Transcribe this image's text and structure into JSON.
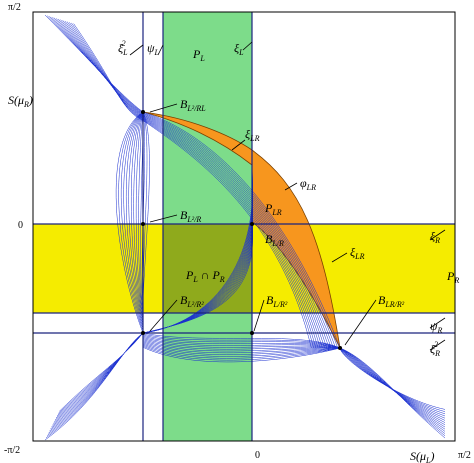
{
  "axes": {
    "y_label": {
      "parts": [
        [
          "S(μ",
          "base"
        ],
        [
          "R",
          "sub"
        ],
        [
          ")",
          "base"
        ]
      ]
    },
    "x_label": {
      "parts": [
        [
          "S(μ",
          "base"
        ],
        [
          "L",
          "sub"
        ],
        [
          ")",
          "base"
        ]
      ]
    },
    "y_ticks": [
      "π/2",
      "0",
      "-π/2"
    ],
    "x_ticks": [
      "0",
      "π/2"
    ]
  },
  "labels": [
    {
      "parts": [
        [
          "P",
          "base"
        ],
        [
          "L",
          "sub"
        ]
      ]
    },
    {
      "parts": [
        [
          "ξ",
          "base"
        ],
        [
          "L",
          "sub"
        ],
        [
          "2",
          "sup"
        ]
      ]
    },
    {
      "parts": [
        [
          "ψ",
          "base"
        ],
        [
          "L",
          "sub"
        ]
      ]
    },
    {
      "parts": [
        [
          "ξ",
          "base"
        ],
        [
          "L",
          "sub"
        ]
      ]
    },
    {
      "parts": [
        [
          "B",
          "base"
        ],
        [
          "L²/RL",
          "sub"
        ]
      ]
    },
    {
      "parts": [
        [
          "ξ",
          "base"
        ],
        [
          "LR",
          "sub"
        ]
      ]
    },
    {
      "parts": [
        [
          "φ",
          "base"
        ],
        [
          "LR",
          "sub"
        ]
      ]
    },
    {
      "parts": [
        [
          "P",
          "base"
        ],
        [
          "LR",
          "sub"
        ]
      ]
    },
    {
      "parts": [
        [
          "B",
          "base"
        ],
        [
          "L²/R",
          "sub"
        ]
      ]
    },
    {
      "parts": [
        [
          "B",
          "base"
        ],
        [
          "L/R",
          "sub"
        ]
      ]
    },
    {
      "parts": [
        [
          "ξ",
          "base"
        ],
        [
          "LR",
          "sub"
        ]
      ]
    },
    {
      "parts": [
        [
          "ξ",
          "base"
        ],
        [
          "R",
          "sub"
        ]
      ]
    },
    {
      "parts": [
        [
          "P",
          "base"
        ],
        [
          "R",
          "sub"
        ]
      ]
    },
    {
      "parts": [
        [
          "P",
          "base"
        ],
        [
          "L",
          "sub"
        ],
        [
          " ∩ P",
          "base"
        ],
        [
          "R",
          "sub"
        ]
      ]
    },
    {
      "parts": [
        [
          "B",
          "base"
        ],
        [
          "L²/R²",
          "sub"
        ]
      ]
    },
    {
      "parts": [
        [
          "B",
          "base"
        ],
        [
          "L/R²",
          "sub"
        ]
      ]
    },
    {
      "parts": [
        [
          "B",
          "base"
        ],
        [
          "LR/R²",
          "sub"
        ]
      ]
    },
    {
      "parts": [
        [
          "ψ",
          "base"
        ],
        [
          "R",
          "sub"
        ]
      ]
    },
    {
      "parts": [
        [
          "ξ",
          "base"
        ],
        [
          "R",
          "sub"
        ],
        [
          "2",
          "sup"
        ]
      ]
    }
  ]
}
